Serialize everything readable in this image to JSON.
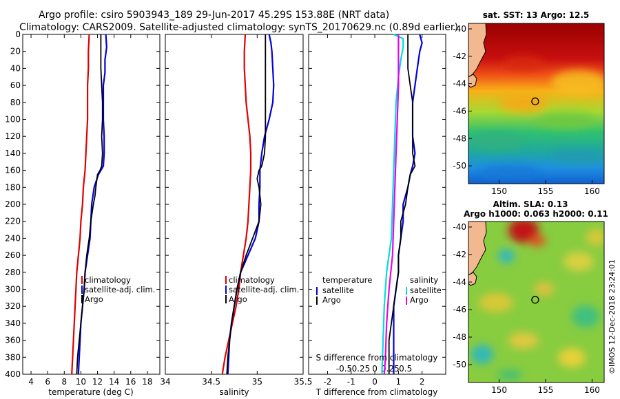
{
  "title_line1": "Argo profile: csiro 5903943_189 29-Jun-2017 45.29S 153.88E (NRT data)",
  "title_line2": "Climatology: CARS2009. Satellite-adjusted climatology: synTS_20170629.nc (0.89d earlier)",
  "watermark": "©IMOS 12-Dec-2018 23:24:01",
  "colors": {
    "climatology": "#e00000",
    "satellite": "#0000dd",
    "argo": "#000000",
    "magenta": "#ee00ee",
    "cyan": "#00dddd"
  },
  "chart_data": [
    {
      "id": "temperature",
      "type": "line",
      "xlabel": "temperature (deg C)",
      "ylabel": "",
      "xlim": [
        3,
        19.5
      ],
      "ylim": [
        400,
        0
      ],
      "xticks": [
        "4",
        "6",
        "8",
        "10",
        "12",
        "14",
        "16",
        "18"
      ],
      "xtick_values": [
        4,
        6,
        8,
        10,
        12,
        14,
        16,
        18
      ],
      "yticks": [
        "0",
        "20",
        "40",
        "60",
        "80",
        "100",
        "120",
        "140",
        "160",
        "180",
        "200",
        "220",
        "240",
        "260",
        "280",
        "300",
        "320",
        "340",
        "360",
        "380",
        "400"
      ],
      "ytick_values": [
        0,
        20,
        40,
        60,
        80,
        100,
        120,
        140,
        160,
        180,
        200,
        220,
        240,
        260,
        280,
        300,
        320,
        340,
        360,
        380,
        400
      ],
      "legend": [
        "climatology",
        "satellite-adj. clim.",
        "Argo"
      ],
      "legend_position": "bottom-right",
      "series": [
        {
          "name": "climatology",
          "color": "#e00000",
          "points": [
            [
              11.0,
              0
            ],
            [
              10.9,
              20
            ],
            [
              10.9,
              40
            ],
            [
              10.8,
              60
            ],
            [
              10.8,
              80
            ],
            [
              10.8,
              100
            ],
            [
              10.7,
              120
            ],
            [
              10.6,
              140
            ],
            [
              10.5,
              160
            ],
            [
              10.3,
              180
            ],
            [
              10.2,
              200
            ],
            [
              10.0,
              220
            ],
            [
              9.9,
              240
            ],
            [
              9.7,
              260
            ],
            [
              9.5,
              280
            ],
            [
              9.4,
              300
            ],
            [
              9.3,
              320
            ],
            [
              9.2,
              340
            ],
            [
              9.1,
              360
            ],
            [
              9.0,
              380
            ],
            [
              8.9,
              400
            ]
          ]
        },
        {
          "name": "satellite-adj. clim.",
          "color": "#0000dd",
          "points": [
            [
              13.0,
              0
            ],
            [
              13.1,
              15
            ],
            [
              12.9,
              30
            ],
            [
              12.9,
              45
            ],
            [
              12.7,
              60
            ],
            [
              12.7,
              80
            ],
            [
              12.7,
              100
            ],
            [
              12.8,
              120
            ],
            [
              12.8,
              140
            ],
            [
              12.7,
              155
            ],
            [
              12.1,
              165
            ],
            [
              11.6,
              180
            ],
            [
              11.3,
              200
            ],
            [
              11.2,
              220
            ],
            [
              11.1,
              240
            ],
            [
              10.8,
              260
            ],
            [
              10.5,
              280
            ],
            [
              10.4,
              300
            ],
            [
              10.2,
              320
            ],
            [
              10.0,
              340
            ],
            [
              9.9,
              360
            ],
            [
              9.8,
              380
            ],
            [
              9.7,
              400
            ]
          ]
        },
        {
          "name": "Argo",
          "color": "#000000",
          "points": [
            [
              12.4,
              0
            ],
            [
              12.4,
              20
            ],
            [
              12.4,
              40
            ],
            [
              12.5,
              60
            ],
            [
              12.6,
              80
            ],
            [
              12.6,
              100
            ],
            [
              12.5,
              120
            ],
            [
              12.6,
              140
            ],
            [
              12.5,
              155
            ],
            [
              12.3,
              160
            ],
            [
              12.0,
              165
            ],
            [
              11.8,
              180
            ],
            [
              11.7,
              190
            ],
            [
              11.5,
              200
            ],
            [
              11.2,
              220
            ],
            [
              11.0,
              240
            ],
            [
              10.7,
              260
            ],
            [
              10.5,
              280
            ],
            [
              10.4,
              300
            ],
            [
              10.2,
              320
            ],
            [
              10.0,
              340
            ],
            [
              9.8,
              360
            ],
            [
              9.6,
              380
            ],
            [
              9.5,
              400
            ]
          ]
        }
      ]
    },
    {
      "id": "salinity",
      "type": "line",
      "xlabel": "salinity",
      "xlim": [
        34,
        35.5
      ],
      "ylim": [
        400,
        0
      ],
      "xticks": [
        "34",
        "34.5",
        "35",
        "35.5"
      ],
      "xtick_values": [
        34,
        34.5,
        35,
        35.5
      ],
      "legend": [
        "climatology",
        "satellite-adj. clim.",
        "Argo"
      ],
      "legend_position": "bottom-right",
      "series": [
        {
          "name": "climatology",
          "color": "#e00000",
          "points": [
            [
              34.87,
              0
            ],
            [
              34.86,
              20
            ],
            [
              34.86,
              40
            ],
            [
              34.87,
              60
            ],
            [
              34.88,
              80
            ],
            [
              34.9,
              100
            ],
            [
              34.92,
              120
            ],
            [
              34.93,
              140
            ],
            [
              34.93,
              160
            ],
            [
              34.92,
              180
            ],
            [
              34.91,
              200
            ],
            [
              34.9,
              220
            ],
            [
              34.88,
              240
            ],
            [
              34.85,
              260
            ],
            [
              34.82,
              280
            ],
            [
              34.8,
              300
            ],
            [
              34.77,
              320
            ],
            [
              34.73,
              340
            ],
            [
              34.69,
              360
            ],
            [
              34.65,
              380
            ],
            [
              34.62,
              400
            ]
          ]
        },
        {
          "name": "satellite-adj. clim.",
          "color": "#0000dd",
          "points": [
            [
              35.13,
              0
            ],
            [
              35.15,
              10
            ],
            [
              35.16,
              20
            ],
            [
              35.17,
              40
            ],
            [
              35.18,
              60
            ],
            [
              35.17,
              80
            ],
            [
              35.13,
              100
            ],
            [
              35.08,
              120
            ],
            [
              35.05,
              140
            ],
            [
              35.03,
              160
            ],
            [
              35.03,
              180
            ],
            [
              35.02,
              200
            ],
            [
              35.02,
              220
            ],
            [
              34.98,
              240
            ],
            [
              34.9,
              260
            ],
            [
              34.82,
              280
            ],
            [
              34.78,
              300
            ],
            [
              34.75,
              320
            ],
            [
              34.72,
              340
            ],
            [
              34.7,
              360
            ],
            [
              34.69,
              380
            ],
            [
              34.68,
              400
            ]
          ]
        },
        {
          "name": "Argo",
          "color": "#000000",
          "points": [
            [
              35.09,
              0
            ],
            [
              35.09,
              20
            ],
            [
              35.09,
              40
            ],
            [
              35.09,
              60
            ],
            [
              35.09,
              80
            ],
            [
              35.09,
              100
            ],
            [
              35.09,
              120
            ],
            [
              35.08,
              140
            ],
            [
              35.05,
              155
            ],
            [
              35.02,
              160
            ],
            [
              35.0,
              170
            ],
            [
              35.02,
              180
            ],
            [
              35.04,
              200
            ],
            [
              35.02,
              220
            ],
            [
              34.95,
              240
            ],
            [
              34.88,
              260
            ],
            [
              34.82,
              280
            ],
            [
              34.78,
              300
            ],
            [
              34.75,
              320
            ],
            [
              34.72,
              340
            ],
            [
              34.7,
              360
            ],
            [
              34.68,
              380
            ],
            [
              34.67,
              400
            ]
          ]
        }
      ]
    },
    {
      "id": "difference",
      "type": "line",
      "xlabel": "T difference from climatology",
      "xlabel2": "S difference from climatology",
      "xlim": [
        -2.8,
        3.0
      ],
      "ylim": [
        400,
        0
      ],
      "xticks": [
        "-2",
        "-1",
        "0",
        "1",
        "2"
      ],
      "xtick_values": [
        -2,
        -1,
        0,
        1,
        2
      ],
      "xticks2": [
        "-0.5",
        "-0.25",
        "0",
        "0.25",
        "0.5"
      ],
      "xtick2_values": [
        -0.5,
        -0.25,
        0,
        0.25,
        0.5
      ],
      "legend_left_title": "temperature",
      "legend_right_title": "salinity",
      "legend_left": [
        "satellite",
        "Argo"
      ],
      "legend_right": [
        "satellite",
        "Argo"
      ],
      "series": [
        {
          "name": "T satellite",
          "color": "#0000dd",
          "points": [
            [
              1.9,
              0
            ],
            [
              2.0,
              10
            ],
            [
              1.9,
              20
            ],
            [
              1.8,
              40
            ],
            [
              1.7,
              60
            ],
            [
              1.6,
              80
            ],
            [
              1.6,
              100
            ],
            [
              1.6,
              120
            ],
            [
              1.7,
              140
            ],
            [
              1.6,
              155
            ],
            [
              1.5,
              165
            ],
            [
              1.4,
              180
            ],
            [
              1.2,
              200
            ],
            [
              1.2,
              220
            ],
            [
              1.1,
              240
            ],
            [
              1.0,
              260
            ],
            [
              1.0,
              280
            ],
            [
              0.9,
              300
            ],
            [
              0.8,
              320
            ],
            [
              0.8,
              340
            ],
            [
              0.8,
              360
            ],
            [
              0.8,
              380
            ],
            [
              0.8,
              400
            ]
          ]
        },
        {
          "name": "T Argo",
          "color": "#000000",
          "points": [
            [
              1.4,
              0
            ],
            [
              1.4,
              20
            ],
            [
              1.4,
              40
            ],
            [
              1.5,
              60
            ],
            [
              1.6,
              80
            ],
            [
              1.6,
              100
            ],
            [
              1.6,
              120
            ],
            [
              1.6,
              140
            ],
            [
              1.7,
              155
            ],
            [
              1.5,
              165
            ],
            [
              1.4,
              180
            ],
            [
              1.3,
              200
            ],
            [
              1.1,
              220
            ],
            [
              1.1,
              240
            ],
            [
              1.0,
              260
            ],
            [
              1.0,
              280
            ],
            [
              0.9,
              300
            ],
            [
              0.8,
              320
            ],
            [
              0.7,
              340
            ],
            [
              0.6,
              360
            ],
            [
              0.6,
              380
            ],
            [
              0.6,
              400
            ]
          ]
        },
        {
          "name": "S satellite",
          "color": "#00dddd",
          "points": [
            [
              0.8,
              0
            ],
            [
              1.2,
              5
            ],
            [
              1.2,
              15
            ],
            [
              1.1,
              30
            ],
            [
              1.0,
              50
            ],
            [
              0.9,
              80
            ],
            [
              0.85,
              120
            ],
            [
              0.8,
              160
            ],
            [
              0.75,
              200
            ],
            [
              0.7,
              240
            ],
            [
              0.5,
              280
            ],
            [
              0.4,
              320
            ],
            [
              0.35,
              360
            ],
            [
              0.3,
              400
            ]
          ]
        },
        {
          "name": "S Argo",
          "color": "#ee00ee",
          "points": [
            [
              1.0,
              0
            ],
            [
              1.0,
              20
            ],
            [
              1.0,
              60
            ],
            [
              0.95,
              100
            ],
            [
              0.9,
              140
            ],
            [
              0.85,
              180
            ],
            [
              0.8,
              220
            ],
            [
              0.75,
              260
            ],
            [
              0.6,
              300
            ],
            [
              0.5,
              340
            ],
            [
              0.45,
              380
            ],
            [
              0.4,
              400
            ]
          ]
        }
      ]
    },
    {
      "id": "sst_map",
      "type": "heatmap",
      "title": "sat. SST: 13 Argo: 12.5",
      "xticks": [
        "150",
        "155",
        "160"
      ],
      "xtick_values": [
        150,
        155,
        160
      ],
      "yticks": [
        "-40",
        "-42",
        "-44",
        "-46",
        "-48",
        "-50"
      ],
      "ytick_values": [
        -40,
        -42,
        -44,
        -46,
        -48,
        -50
      ],
      "xlim": [
        146.7,
        161.3
      ],
      "ylim": [
        -51.3,
        -39.6
      ],
      "argo_position": [
        153.88,
        -45.29
      ]
    },
    {
      "id": "sla_map",
      "type": "heatmap",
      "title_line1": "Altim. SLA: 0.13",
      "title_line2": "Argo h1000: 0.063 h2000: 0.11",
      "xticks": [
        "150",
        "155",
        "160"
      ],
      "xtick_values": [
        150,
        155,
        160
      ],
      "yticks": [
        "-40",
        "-42",
        "-44",
        "-46",
        "-48",
        "-50"
      ],
      "ytick_values": [
        -40,
        -42,
        -44,
        -46,
        -48,
        -50
      ],
      "xlim": [
        146.7,
        161.3
      ],
      "ylim": [
        -51.3,
        -39.6
      ],
      "argo_position": [
        153.88,
        -45.29
      ]
    }
  ]
}
